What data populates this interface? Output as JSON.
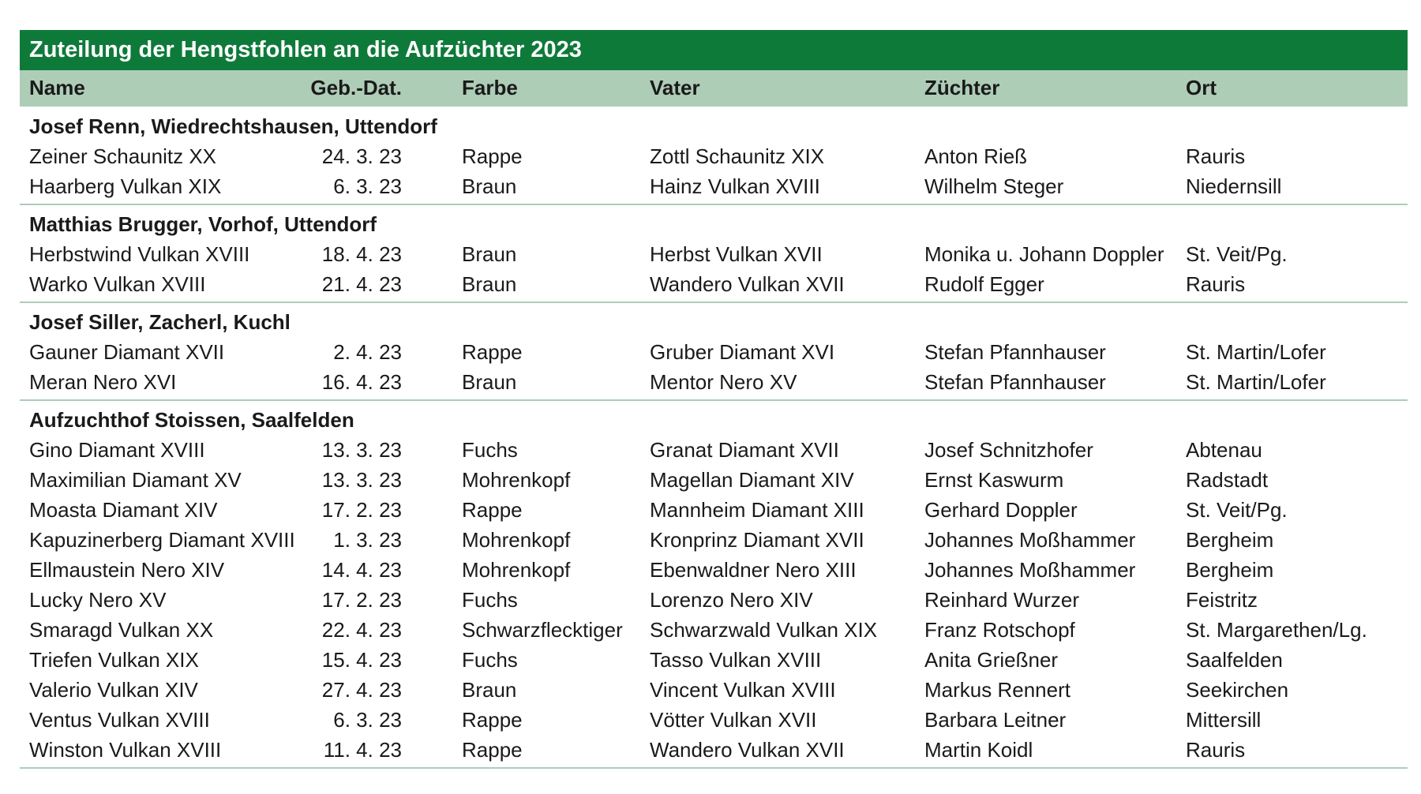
{
  "title": "Zuteilung der Hengstfohlen an die Aufzüchter 2023",
  "header": [
    "Name",
    "Geb.-Dat.",
    "Farbe",
    "Vater",
    "Züchter",
    "Ort"
  ],
  "groups": [
    {
      "breeder": "Josef Renn, Wiedrechtshausen, Uttendorf",
      "rows": [
        [
          "Zeiner Schaunitz XX",
          "24. 3. 23",
          "Rappe",
          "Zottl Schaunitz XIX",
          "Anton Rieß",
          "Rauris"
        ],
        [
          "Haarberg Vulkan XIX",
          "6. 3. 23",
          "Braun",
          "Hainz Vulkan XVIII",
          "Wilhelm Steger",
          "Niedernsill"
        ]
      ]
    },
    {
      "breeder": "Matthias Brugger, Vorhof, Uttendorf",
      "rows": [
        [
          "Herbstwind Vulkan XVIII",
          "18. 4. 23",
          "Braun",
          "Herbst Vulkan XVII",
          "Monika u. Johann Doppler",
          "St. Veit/Pg."
        ],
        [
          "Warko Vulkan XVIII",
          "21. 4. 23",
          "Braun",
          "Wandero Vulkan XVII",
          "Rudolf Egger",
          "Rauris"
        ]
      ]
    },
    {
      "breeder": "Josef Siller, Zacherl, Kuchl",
      "rows": [
        [
          "Gauner Diamant XVII",
          "2. 4. 23",
          "Rappe",
          "Gruber Diamant XVI",
          "Stefan Pfannhauser",
          "St. Martin/Lofer"
        ],
        [
          "Meran Nero XVI",
          "16. 4. 23",
          "Braun",
          "Mentor Nero XV",
          "Stefan Pfannhauser",
          "St. Martin/Lofer"
        ]
      ]
    },
    {
      "breeder": "Aufzuchthof Stoissen, Saalfelden",
      "rows": [
        [
          "Gino Diamant XVIII",
          "13. 3. 23",
          "Fuchs",
          "Granat Diamant XVII",
          "Josef Schnitzhofer",
          "Abtenau"
        ],
        [
          "Maximilian Diamant XV",
          "13. 3. 23",
          "Mohrenkopf",
          "Magellan Diamant XIV",
          "Ernst Kaswurm",
          "Radstadt"
        ],
        [
          "Moasta Diamant XIV",
          "17. 2. 23",
          "Rappe",
          "Mannheim Diamant XIII",
          "Gerhard Doppler",
          "St. Veit/Pg."
        ],
        [
          "Kapuzinerberg Diamant XVIII",
          "1. 3. 23",
          "Mohrenkopf",
          "Kronprinz Diamant XVII",
          "Johannes Moßhammer",
          "Bergheim"
        ],
        [
          "Ellmaustein Nero XIV",
          "14. 4. 23",
          "Mohrenkopf",
          "Ebenwaldner Nero XIII",
          "Johannes Moßhammer",
          "Bergheim"
        ],
        [
          "Lucky Nero XV",
          "17. 2. 23",
          "Fuchs",
          "Lorenzo Nero XIV",
          "Reinhard Wurzer",
          "Feistritz"
        ],
        [
          "Smaragd Vulkan XX",
          "22. 4. 23",
          "Schwarzflecktiger",
          "Schwarzwald Vulkan XIX",
          "Franz Rotschopf",
          "St. Margarethen/Lg."
        ],
        [
          "Triefen Vulkan XIX",
          "15. 4. 23",
          "Fuchs",
          "Tasso Vulkan XVIII",
          "Anita Grießner",
          "Saalfelden"
        ],
        [
          "Valerio Vulkan XIV",
          "27. 4. 23",
          "Braun",
          "Vincent Vulkan XVIII",
          "Markus Rennert",
          "Seekirchen"
        ],
        [
          "Ventus Vulkan XVIII",
          "6. 3. 23",
          "Rappe",
          "Vötter Vulkan XVII",
          "Barbara Leitner",
          "Mittersill"
        ],
        [
          "Winston Vulkan XVIII",
          "11. 4. 23",
          "Rappe",
          "Wandero Vulkan XVII",
          "Martin Koidl",
          "Rauris"
        ]
      ]
    }
  ]
}
